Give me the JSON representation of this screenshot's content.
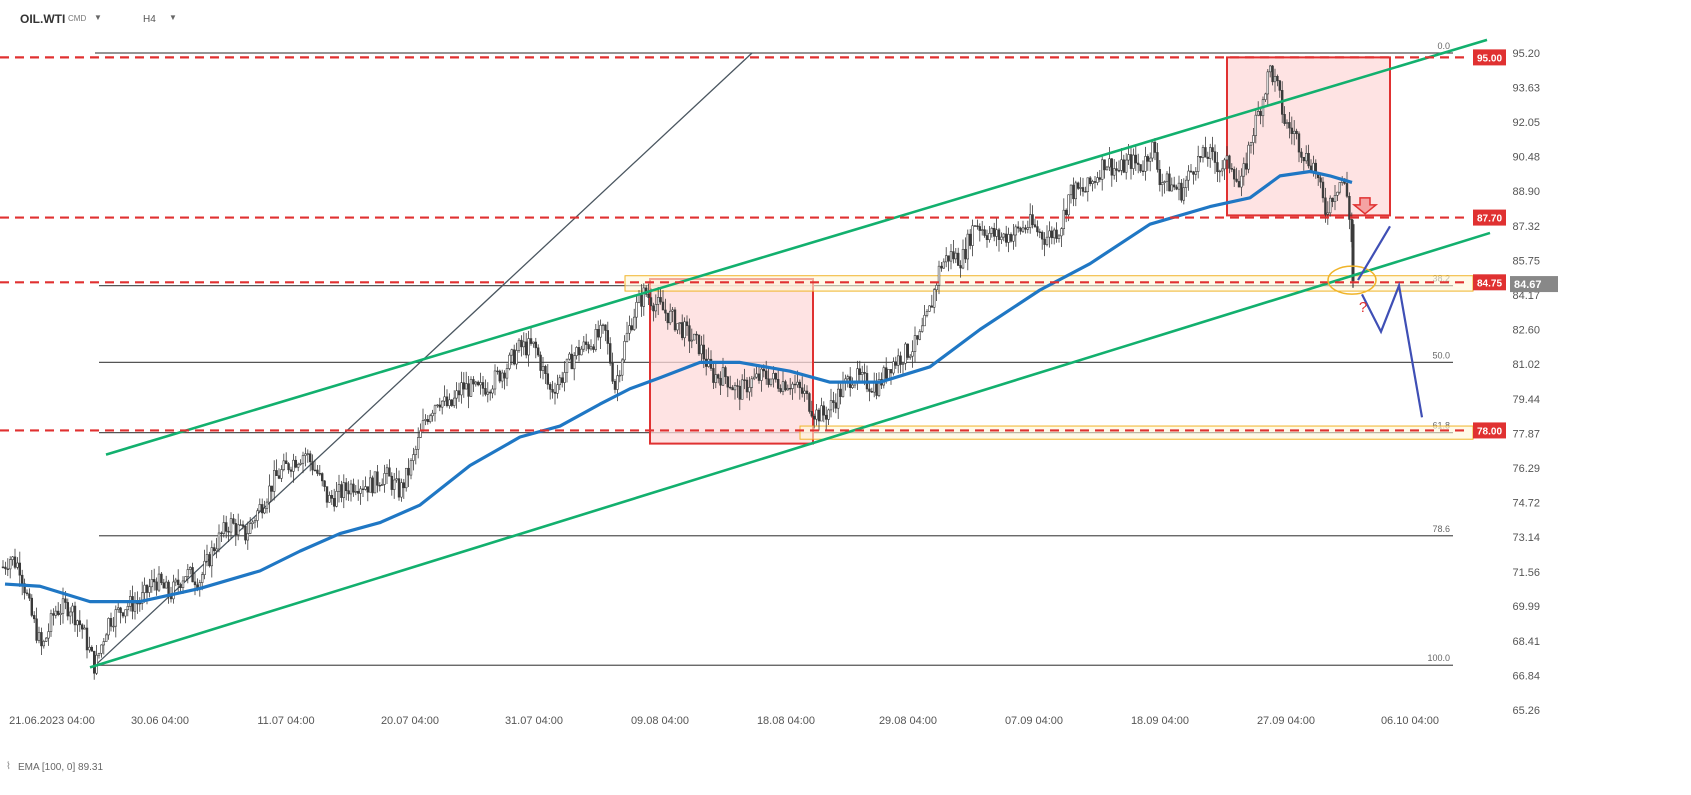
{
  "header": {
    "symbol": "OIL.WTI",
    "symbol_type": "CMD",
    "timeframe": "H4"
  },
  "indicator_legend": "EMA  [100, 0]  89.31",
  "colors": {
    "candle": "#3a3a3a",
    "ema": "#1f77c4",
    "channel": "#12b06e",
    "fib": "#555555",
    "level": "#e03131",
    "box_fill": "#fddada",
    "box_stroke": "#e03131",
    "zone": "#f0b429",
    "projection": "#3f4fb5",
    "price_tag": "#888888"
  },
  "chart_data": {
    "type": "candlestick",
    "instrument": "OIL.WTI",
    "timeframe": "H4",
    "y_range": [
      65.26,
      96.0
    ],
    "y_ticks": [
      "95.20",
      "93.63",
      "92.05",
      "90.48",
      "88.90",
      "87.32",
      "85.75",
      "84.17",
      "82.60",
      "81.02",
      "79.44",
      "77.87",
      "76.29",
      "74.72",
      "73.14",
      "71.56",
      "69.99",
      "68.41",
      "66.84",
      "65.26"
    ],
    "x_ticks": [
      "21.06.2023  04:00",
      "30.06  04:00",
      "11.07  04:00",
      "20.07  04:00",
      "31.07  04:00",
      "09.08  04:00",
      "18.08  04:00",
      "29.08  04:00",
      "07.09  04:00",
      "18.09  04:00",
      "27.09  04:00",
      "06.10  04:00"
    ],
    "price_path": [
      [
        0,
        71.6
      ],
      [
        10,
        72.2
      ],
      [
        20,
        71.8
      ],
      [
        30,
        69.8
      ],
      [
        42,
        68.0
      ],
      [
        55,
        69.8
      ],
      [
        70,
        70.0
      ],
      [
        82,
        69.0
      ],
      [
        95,
        67.2
      ],
      [
        108,
        69.3
      ],
      [
        125,
        70.0
      ],
      [
        140,
        70.2
      ],
      [
        155,
        71.2
      ],
      [
        170,
        70.5
      ],
      [
        185,
        71.5
      ],
      [
        200,
        71.2
      ],
      [
        215,
        72.8
      ],
      [
        230,
        73.8
      ],
      [
        245,
        73.2
      ],
      [
        260,
        74.5
      ],
      [
        275,
        75.8
      ],
      [
        290,
        76.5
      ],
      [
        305,
        77.0
      ],
      [
        318,
        76.0
      ],
      [
        328,
        74.8
      ],
      [
        342,
        75.2
      ],
      [
        355,
        75.6
      ],
      [
        370,
        75.5
      ],
      [
        385,
        76.0
      ],
      [
        400,
        75.2
      ],
      [
        412,
        76.5
      ],
      [
        425,
        78.5
      ],
      [
        438,
        79.5
      ],
      [
        450,
        79.0
      ],
      [
        462,
        80.0
      ],
      [
        478,
        79.8
      ],
      [
        492,
        80.2
      ],
      [
        508,
        81.0
      ],
      [
        520,
        81.8
      ],
      [
        535,
        81.8
      ],
      [
        550,
        79.8
      ],
      [
        560,
        80.3
      ],
      [
        575,
        81.5
      ],
      [
        590,
        82.0
      ],
      [
        605,
        82.5
      ],
      [
        615,
        80.0
      ],
      [
        625,
        82.0
      ],
      [
        635,
        83.5
      ],
      [
        645,
        84.3
      ],
      [
        655,
        83.8
      ],
      [
        670,
        83.2
      ],
      [
        685,
        82.5
      ],
      [
        700,
        81.8
      ],
      [
        712,
        80.5
      ],
      [
        725,
        80.5
      ],
      [
        738,
        79.7
      ],
      [
        750,
        80.2
      ],
      [
        765,
        80.5
      ],
      [
        778,
        80.2
      ],
      [
        790,
        80.2
      ],
      [
        805,
        79.6
      ],
      [
        815,
        78.8
      ],
      [
        825,
        78.7
      ],
      [
        838,
        79.6
      ],
      [
        852,
        80.5
      ],
      [
        865,
        80.2
      ],
      [
        878,
        80.0
      ],
      [
        890,
        81.0
      ],
      [
        905,
        81.5
      ],
      [
        918,
        82.0
      ],
      [
        930,
        83.5
      ],
      [
        940,
        85.5
      ],
      [
        950,
        86.0
      ],
      [
        962,
        85.8
      ],
      [
        975,
        87.5
      ],
      [
        988,
        87.0
      ],
      [
        1000,
        86.8
      ],
      [
        1015,
        87.0
      ],
      [
        1030,
        87.4
      ],
      [
        1045,
        86.8
      ],
      [
        1060,
        87.2
      ],
      [
        1070,
        88.9
      ],
      [
        1085,
        88.9
      ],
      [
        1095,
        89.5
      ],
      [
        1105,
        90.3
      ],
      [
        1118,
        89.8
      ],
      [
        1130,
        90.3
      ],
      [
        1142,
        90.0
      ],
      [
        1152,
        91.0
      ],
      [
        1160,
        89.5
      ],
      [
        1170,
        89.2
      ],
      [
        1182,
        88.9
      ],
      [
        1195,
        90.2
      ],
      [
        1208,
        90.6
      ],
      [
        1220,
        90.0
      ],
      [
        1232,
        90.2
      ],
      [
        1240,
        88.9
      ],
      [
        1252,
        91.5
      ],
      [
        1262,
        93.0
      ],
      [
        1270,
        94.5
      ],
      [
        1278,
        93.5
      ],
      [
        1285,
        92.0
      ],
      [
        1295,
        91.5
      ],
      [
        1305,
        90.5
      ],
      [
        1315,
        90.0
      ],
      [
        1325,
        88.0
      ],
      [
        1335,
        89.0
      ],
      [
        1342,
        89.5
      ],
      [
        1348,
        88.5
      ],
      [
        1352,
        86.5
      ],
      [
        1355,
        84.8
      ]
    ],
    "ema": {
      "label": "EMA [100, 0]",
      "last_value": 89.31,
      "path": [
        [
          5,
          71.0
        ],
        [
          40,
          70.9
        ],
        [
          90,
          70.2
        ],
        [
          140,
          70.2
        ],
        [
          200,
          70.8
        ],
        [
          260,
          71.6
        ],
        [
          300,
          72.5
        ],
        [
          340,
          73.3
        ],
        [
          380,
          73.8
        ],
        [
          420,
          74.6
        ],
        [
          470,
          76.4
        ],
        [
          520,
          77.7
        ],
        [
          560,
          78.2
        ],
        [
          600,
          79.2
        ],
        [
          630,
          79.9
        ],
        [
          660,
          80.4
        ],
        [
          700,
          81.1
        ],
        [
          740,
          81.1
        ],
        [
          790,
          80.7
        ],
        [
          830,
          80.2
        ],
        [
          880,
          80.2
        ],
        [
          930,
          80.9
        ],
        [
          980,
          82.6
        ],
        [
          1040,
          84.4
        ],
        [
          1090,
          85.6
        ],
        [
          1150,
          87.4
        ],
        [
          1210,
          88.2
        ],
        [
          1250,
          88.6
        ],
        [
          1280,
          89.6
        ],
        [
          1310,
          89.8
        ],
        [
          1330,
          89.6
        ],
        [
          1352,
          89.3
        ]
      ]
    },
    "horizontal_levels": [
      {
        "value": 95.0,
        "label": "95.00"
      },
      {
        "value": 87.7,
        "label": "87.70"
      },
      {
        "value": 84.75,
        "label": "84.75"
      },
      {
        "value": 78.0,
        "label": "78.00"
      }
    ],
    "fibonacci": [
      {
        "level": "0.0",
        "price": 95.2
      },
      {
        "level": "38.2",
        "price": 84.6
      },
      {
        "level": "50.0",
        "price": 81.1
      },
      {
        "level": "61.8",
        "price": 77.9
      },
      {
        "level": "78.6",
        "price": 73.2
      },
      {
        "level": "100.0",
        "price": 67.3
      }
    ],
    "current_price": "84.67",
    "annotations": [
      "?"
    ]
  }
}
